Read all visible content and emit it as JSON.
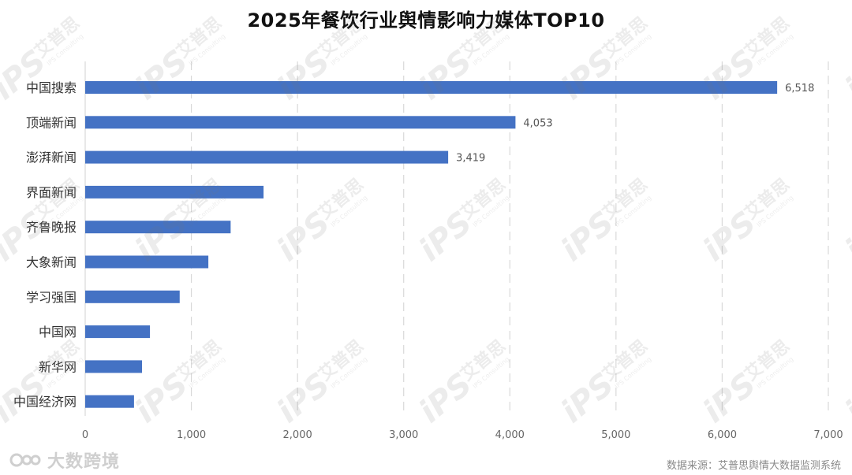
{
  "chart_data": {
    "type": "bar",
    "orientation": "horizontal",
    "title": "2025年餐饮行业舆情影响力媒体TOP10",
    "categories": [
      "中国搜索",
      "顶端新闻",
      "澎湃新闻",
      "界面新闻",
      "齐鲁晚报",
      "大象新闻",
      "学习强国",
      "中国网",
      "新华网",
      "中国经济网"
    ],
    "values": [
      6518,
      4053,
      3419,
      1680,
      1370,
      1160,
      890,
      610,
      535,
      460
    ],
    "data_labels": [
      "6,518",
      "4,053",
      "3,419",
      null,
      null,
      null,
      null,
      null,
      null,
      null
    ],
    "xlim": [
      0,
      7000
    ],
    "xticks": [
      0,
      1000,
      2000,
      3000,
      4000,
      5000,
      6000,
      7000
    ],
    "xtick_labels": [
      "0",
      "1,000",
      "2,000",
      "3,000",
      "4,000",
      "5,000",
      "6,000",
      "7,000"
    ],
    "xlabel": "",
    "ylabel": "",
    "grid": "vertical-dashed",
    "bar_color": "#4472c4"
  },
  "footer": {
    "brand": "大数跨境",
    "source": "数据来源：艾普思舆情大数据监测系统"
  },
  "watermark": {
    "text": "艾普思",
    "subtext": "IPS Consulting",
    "logo": "iPS"
  }
}
